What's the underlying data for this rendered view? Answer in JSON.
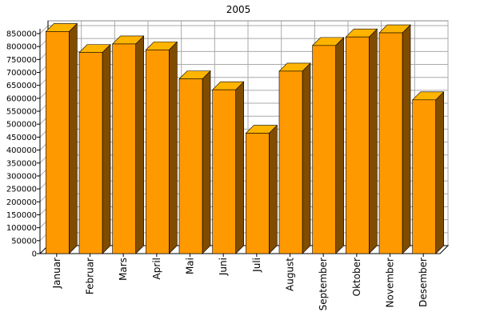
{
  "chart_data": {
    "type": "bar",
    "title": "2005",
    "xlabel": "",
    "ylabel": "",
    "categories": [
      "Januar",
      "Februar",
      "Mars",
      "April",
      "Mai",
      "Juni",
      "Juli",
      "August",
      "September",
      "Oktober",
      "November",
      "Desember"
    ],
    "values": [
      858000,
      777000,
      810000,
      787000,
      675000,
      633000,
      465000,
      705000,
      804000,
      837000,
      853000,
      594000
    ],
    "ylim": [
      0,
      850000
    ],
    "ytick_step": 50000,
    "grid": true,
    "three_d": true,
    "legend": "none",
    "colors": {
      "bar_front": "#ff9900",
      "bar_top": "#ffb400",
      "bar_side": "#7f4c00",
      "outline": "#000000",
      "grid": "#aaaaaa",
      "plot_back": "#ffffff",
      "floor": "#ffffff"
    }
  }
}
